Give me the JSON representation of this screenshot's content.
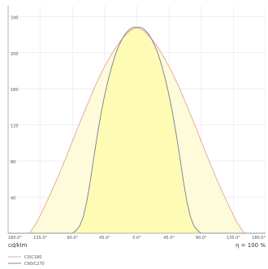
{
  "chart_data": {
    "type": "area",
    "x_ticks": [
      "180.0°",
      "135.0°",
      "90.0°",
      "45.0°",
      "0.0°",
      "45.0°",
      "90.0°",
      "135.0°",
      "180.0°"
    ],
    "y_ticks": [
      40,
      80,
      120,
      160,
      200,
      240
    ],
    "xlim": [
      -180,
      180
    ],
    "ylim": [
      0,
      252
    ],
    "grid": true,
    "unit_label": "cd/klm",
    "efficiency_label": "η = 100 %",
    "legend_position": "bottom-left",
    "series": [
      {
        "name": "C0/C180",
        "color": "#e8a0a0",
        "fill": "#fdfbd9",
        "x": [
          -180,
          -150,
          -140,
          -130,
          -120,
          -110,
          -100,
          -90,
          -80,
          -70,
          -60,
          -50,
          -40,
          -30,
          -20,
          -10,
          0,
          10,
          20,
          30,
          40,
          50,
          60,
          70,
          80,
          90,
          100,
          110,
          120,
          130,
          140,
          150,
          180
        ],
        "y": [
          0,
          0,
          12,
          28,
          45,
          63,
          82,
          102,
          122,
          141,
          160,
          177,
          192,
          205,
          216,
          224,
          228,
          224,
          216,
          205,
          192,
          177,
          160,
          141,
          122,
          102,
          82,
          63,
          45,
          28,
          12,
          0,
          0
        ]
      },
      {
        "name": "C90/C270",
        "color": "#7a7a9a",
        "fill": "#fefbb0",
        "x": [
          -180,
          -90,
          -85,
          -80,
          -75,
          -70,
          -65,
          -60,
          -55,
          -50,
          -45,
          -40,
          -35,
          -30,
          -25,
          -20,
          -15,
          -10,
          -5,
          0,
          5,
          10,
          15,
          20,
          25,
          30,
          35,
          40,
          45,
          50,
          55,
          60,
          65,
          70,
          75,
          80,
          85,
          90,
          180
        ],
        "y": [
          0,
          0,
          3,
          8,
          18,
          35,
          58,
          85,
          110,
          133,
          153,
          170,
          185,
          198,
          208,
          216,
          222,
          226,
          228,
          228,
          228,
          226,
          222,
          216,
          208,
          198,
          185,
          170,
          153,
          133,
          110,
          85,
          58,
          35,
          18,
          8,
          3,
          0,
          0
        ]
      }
    ]
  }
}
